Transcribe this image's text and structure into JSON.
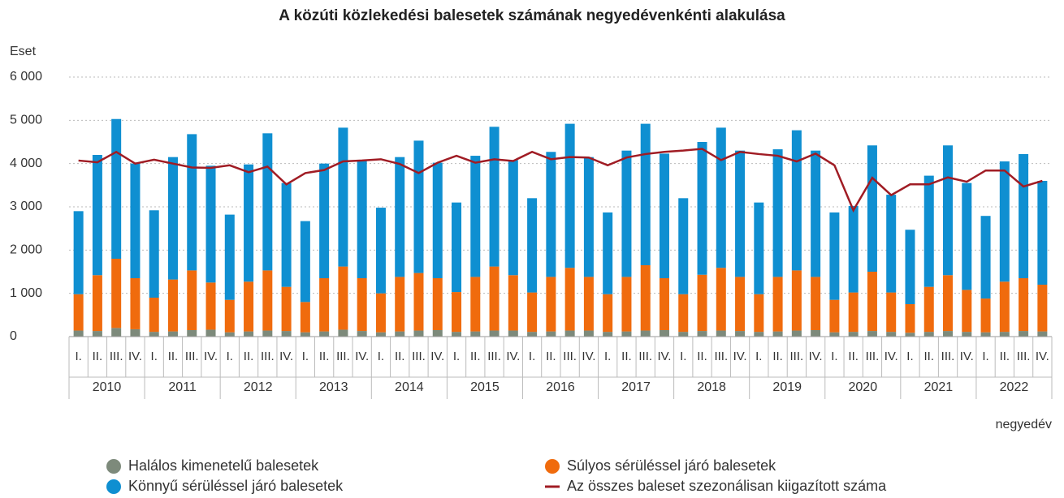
{
  "chart_data": {
    "type": "bar",
    "stacked": true,
    "title": "A közúti közlekedési balesetek számának negyedévenkénti alakulása",
    "y_axis_label": "Eset",
    "x_axis_label": "negyedév",
    "categories": [
      "I.",
      "II.",
      "III.",
      "IV.",
      "I.",
      "II.",
      "III.",
      "IV.",
      "I.",
      "II.",
      "III.",
      "IV.",
      "I.",
      "II.",
      "III.",
      "IV.",
      "I.",
      "II.",
      "III.",
      "IV.",
      "I.",
      "II.",
      "III.",
      "IV.",
      "I.",
      "II.",
      "III.",
      "IV.",
      "I.",
      "II.",
      "III.",
      "IV.",
      "I.",
      "II.",
      "III.",
      "IV.",
      "I.",
      "II.",
      "III.",
      "IV.",
      "I.",
      "II.",
      "III.",
      "IV.",
      "I.",
      "II.",
      "III.",
      "IV.",
      "I.",
      "II.",
      "III.",
      "IV."
    ],
    "years": [
      "2010",
      "2011",
      "2012",
      "2013",
      "2014",
      "2015",
      "2016",
      "2017",
      "2018",
      "2019",
      "2020",
      "2021",
      "2022"
    ],
    "ylim": [
      0,
      6000
    ],
    "yticks": [
      0,
      {
        "value": 1000,
        "label": "1 000"
      },
      {
        "value": 2000,
        "label": "2 000"
      },
      {
        "value": 3000,
        "label": "3 000"
      },
      {
        "value": 4000,
        "label": "4 000"
      },
      {
        "value": 5000,
        "label": "5 000"
      },
      {
        "value": 6000,
        "label": "6 000"
      }
    ],
    "grid": true,
    "series": [
      {
        "name": "Halálos kimenetelű balesetek",
        "color": "#7d8a7b",
        "values": [
          140,
          130,
          200,
          170,
          110,
          120,
          150,
          160,
          100,
          120,
          140,
          130,
          100,
          120,
          160,
          130,
          100,
          120,
          140,
          150,
          110,
          120,
          140,
          140,
          110,
          120,
          140,
          140,
          110,
          120,
          140,
          150,
          110,
          130,
          140,
          130,
          110,
          120,
          140,
          150,
          100,
          110,
          130,
          110,
          90,
          110,
          130,
          110,
          100,
          110,
          130,
          120
        ]
      },
      {
        "name": "Súlyos sérüléssel járó balesetek",
        "color": "#f06b0d",
        "values": [
          840,
          1290,
          1600,
          1180,
          790,
          1200,
          1380,
          1090,
          750,
          1150,
          1390,
          1020,
          700,
          1230,
          1460,
          1220,
          900,
          1260,
          1330,
          1200,
          920,
          1260,
          1480,
          1280,
          910,
          1260,
          1450,
          1240,
          870,
          1260,
          1510,
          1200,
          870,
          1300,
          1450,
          1250,
          870,
          1260,
          1390,
          1230,
          750,
          910,
          1370,
          910,
          660,
          1040,
          1290,
          970,
          780,
          1160,
          1220,
          1080
        ]
      },
      {
        "name": "Könnyű sérüléssel járó balesetek",
        "color": "#0f8fd1",
        "values": [
          1920,
          2780,
          3230,
          2650,
          2020,
          2830,
          3150,
          2700,
          1970,
          2710,
          3170,
          2400,
          1870,
          2650,
          3210,
          2730,
          1980,
          2770,
          3060,
          2670,
          2070,
          2800,
          3230,
          2660,
          2180,
          2890,
          3330,
          2770,
          1890,
          2920,
          3270,
          2880,
          2220,
          3070,
          3240,
          2920,
          2120,
          2950,
          3240,
          2920,
          2020,
          2000,
          2920,
          2260,
          1720,
          2570,
          3000,
          2470,
          1910,
          2780,
          2870,
          2400
        ]
      },
      {
        "name": "Az összes baleset szezonálisan kiigazított száma",
        "color": "#a01c24",
        "type": "line",
        "values": [
          4070,
          4030,
          4270,
          4000,
          4090,
          4000,
          3910,
          3900,
          3960,
          3800,
          3930,
          3520,
          3780,
          3850,
          4050,
          4070,
          4100,
          3990,
          3780,
          4020,
          4180,
          4020,
          4100,
          4060,
          4270,
          4100,
          4150,
          4140,
          3960,
          4140,
          4220,
          4270,
          4300,
          4340,
          4080,
          4270,
          4220,
          4180,
          4050,
          4230,
          3960,
          2920,
          3670,
          3270,
          3520,
          3520,
          3680,
          3580,
          3840,
          3840,
          3470,
          3600
        ]
      }
    ]
  }
}
